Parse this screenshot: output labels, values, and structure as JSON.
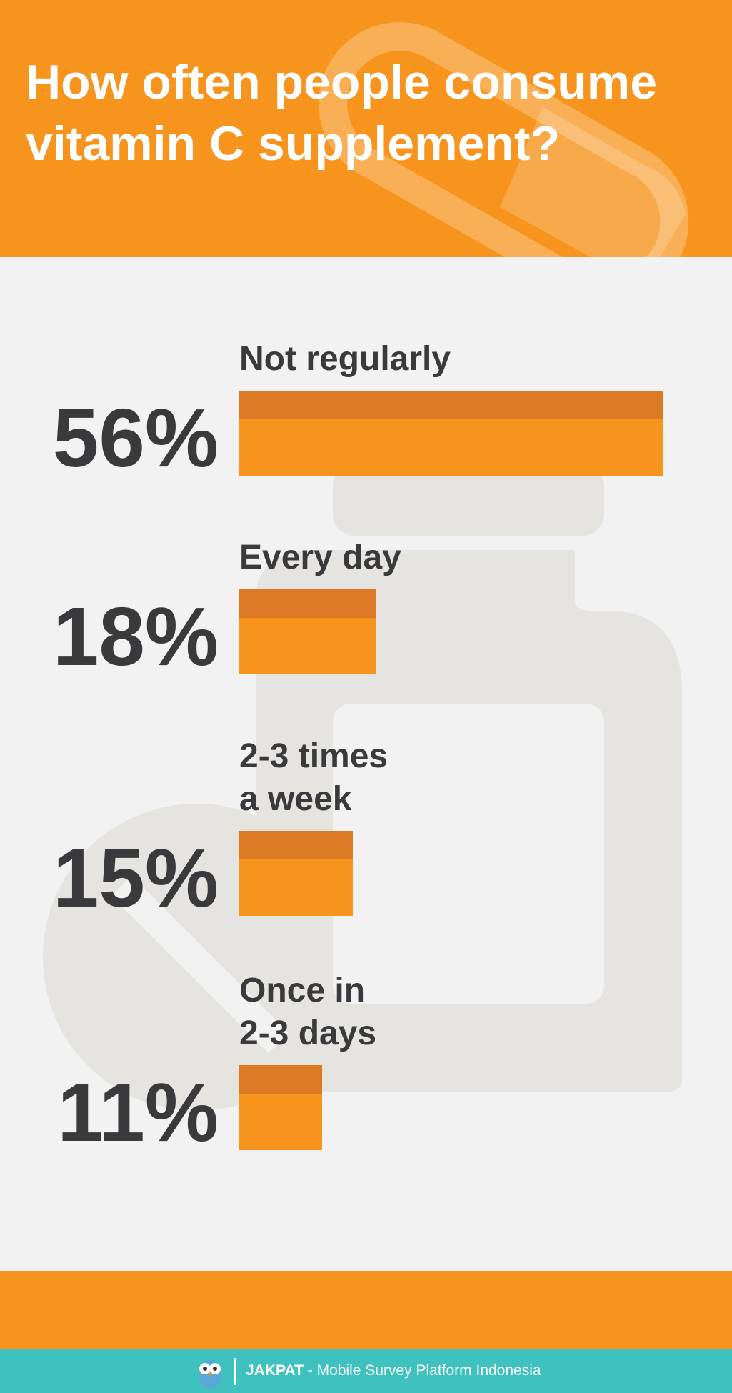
{
  "chart_data": {
    "type": "bar",
    "orientation": "horizontal",
    "title": "How often people consume vitamin C supplement?",
    "categories": [
      "Not regularly",
      "Every day",
      "2-3 times\na week",
      "Once in\n2-3 days"
    ],
    "values": [
      56,
      18,
      15,
      11
    ],
    "value_labels": [
      "56%",
      "18%",
      "15%",
      "11%"
    ],
    "color": "#f7941d",
    "shade_color": "#dc7a26"
  },
  "footer": {
    "brand": "JAKPAT -",
    "tagline": "Mobile Survey Platform Indonesia"
  }
}
